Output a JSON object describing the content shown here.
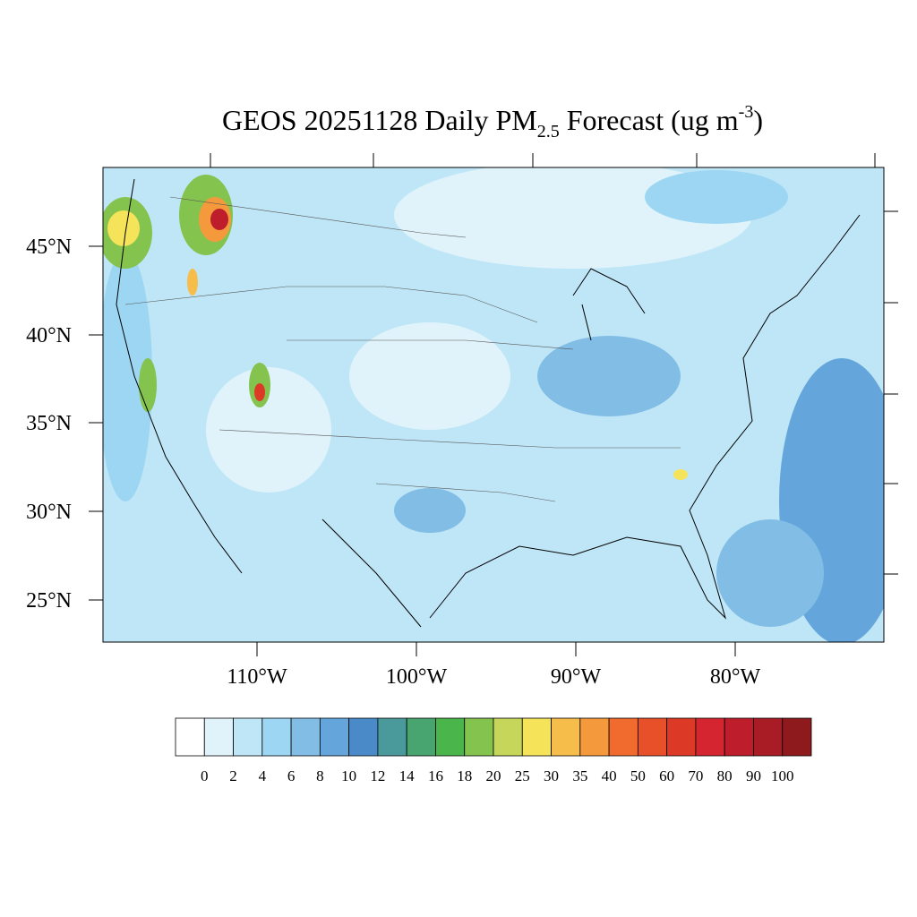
{
  "title": {
    "main": "GEOS 20251128 Daily PM",
    "subscript": "2.5",
    "rest": " Forecast (ug m",
    "superscript": "-3",
    "close": ")"
  },
  "map": {
    "lat_labels": [
      "45°N",
      "40°N",
      "35°N",
      "30°N",
      "25°N"
    ],
    "lon_labels": [
      "110°W",
      "100°W",
      "90°W",
      "80°W"
    ]
  },
  "colorbar": {
    "levels": [
      0,
      2,
      4,
      6,
      8,
      10,
      12,
      14,
      16,
      18,
      20,
      25,
      30,
      35,
      40,
      50,
      60,
      70,
      80,
      90,
      100
    ],
    "colors": [
      "#ffffff",
      "#e0f3fb",
      "#bfe6f7",
      "#9dd6f2",
      "#82bde6",
      "#64a6db",
      "#4a8ac8",
      "#4a9a9c",
      "#48a56f",
      "#4ab54a",
      "#85c34f",
      "#c5d65a",
      "#f5e35a",
      "#f6bd4a",
      "#f59a3c",
      "#f26b2e",
      "#e8502a",
      "#dc3a26",
      "#d42530",
      "#be1e2c",
      "#a91b25",
      "#8f1a1e"
    ]
  }
}
